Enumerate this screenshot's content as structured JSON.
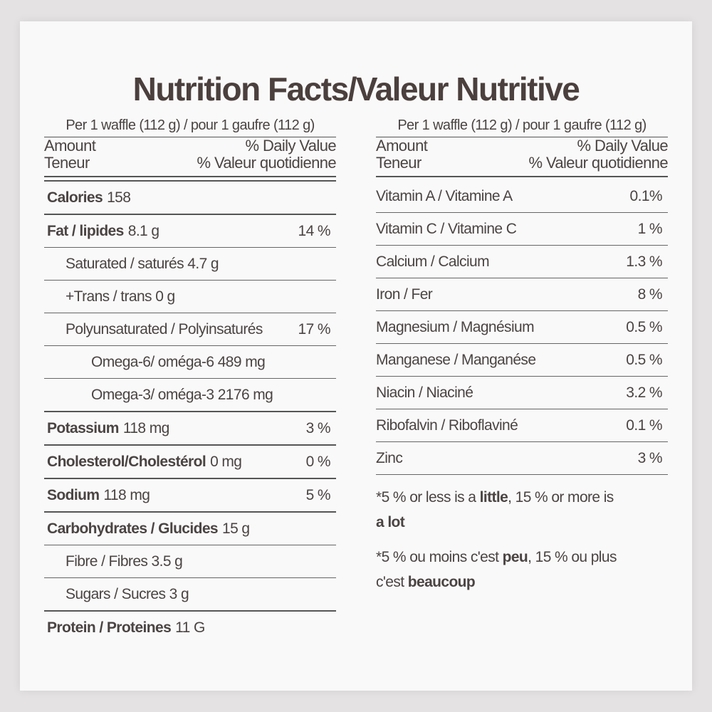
{
  "title": "Nutrition Facts/Valeur Nutritive",
  "left": {
    "serving": "Per 1 waffle (112 g) / pour 1 gaufre (112 g)",
    "amount": "Amount",
    "dv": "% Daily Value",
    "teneur": "Teneur",
    "vq": "% Valeur quotidienne",
    "rows": [
      {
        "name": "Calories",
        "amount": "158"
      },
      {
        "name": "Fat / lipides",
        "amount": "8.1 g",
        "dv": "14 %",
        "sub": [
          {
            "text": "Saturated / saturés 4.7 g"
          },
          {
            "text": "+Trans / trans 0 g"
          },
          {
            "text": "Polyunsaturated / Polyinsaturés",
            "dv": "17 %",
            "sub": [
              {
                "text": "Omega-6/ oméga-6 489 mg"
              },
              {
                "text": "Omega-3/ oméga-3 2176 mg"
              }
            ]
          }
        ]
      },
      {
        "name": "Potassium",
        "amount": "118 mg",
        "dv": "3 %"
      },
      {
        "name": "Cholesterol/Cholestérol",
        "amount": "0 mg",
        "dv": "0 %"
      },
      {
        "name": "Sodium",
        "amount": "118 mg",
        "dv": "5 %"
      },
      {
        "name": "Carbohydrates / Glucides",
        "amount": "15 g",
        "sub": [
          {
            "text": "Fibre / Fibres 3.5 g"
          },
          {
            "text": "Sugars / Sucres 3 g"
          }
        ]
      },
      {
        "name": "Protein / Proteines",
        "amount": "11 G"
      }
    ]
  },
  "right": {
    "serving": "Per 1 waffle (112 g) / pour 1 gaufre (112 g)",
    "amount": "Amount",
    "dv": "% Daily Value",
    "teneur": "Teneur",
    "vq": "% Valeur quotidienne",
    "rows": [
      {
        "text": "Vitamin A / Vitamine A",
        "dv": "0.1%"
      },
      {
        "text": "Vitamin C / Vitamine C",
        "dv": "1 %"
      },
      {
        "text": "Calcium / Calcium",
        "dv": "1.3 %"
      },
      {
        "text": "Iron / Fer",
        "dv": "8 %"
      },
      {
        "text": "Magnesium / Magnésium",
        "dv": "0.5 %"
      },
      {
        "text": "Manganese / Manganése",
        "dv": "0.5 %"
      },
      {
        "text": "Niacin / Niaciné",
        "dv": "3.2 %"
      },
      {
        "text": "Ribofalvin / Riboflaviné",
        "dv": "0.1 %"
      },
      {
        "text": "Zinc",
        "dv": "3 %"
      }
    ],
    "footnotes": [
      [
        "*5 % or less is a ",
        "little",
        ", 15 % or more is ",
        "a lot"
      ],
      [
        "*5 % ou moins c'est ",
        "peu",
        ",  15 % ou plus c'est ",
        "beaucoup"
      ]
    ]
  }
}
